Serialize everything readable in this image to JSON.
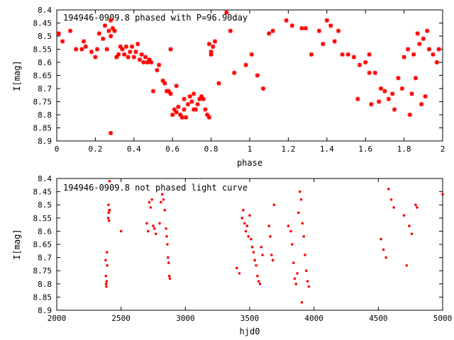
{
  "chart_data": [
    {
      "type": "scatter",
      "title": "194946-0909.8 phased with P=96.90day",
      "xlabel": "phase",
      "ylabel": "I[mag]",
      "xlim": [
        0,
        2
      ],
      "ylim": [
        8.4,
        8.9
      ],
      "y_inverted": true,
      "grid": false,
      "marker": "star",
      "color": "#ff0000",
      "x_ticks": [
        "0",
        "0.2",
        "0.4",
        "0.6",
        "0.8",
        "1",
        "1.2",
        "1.4",
        "1.6",
        "1.8",
        "2"
      ],
      "y_ticks": [
        "8.4",
        "8.45",
        "8.5",
        "8.55",
        "8.6",
        "8.65",
        "8.7",
        "8.75",
        "8.8",
        "8.85",
        "8.9"
      ],
      "series": [
        {
          "points": [
            [
              0.01,
              8.49
            ],
            [
              0.03,
              8.52
            ],
            [
              0.07,
              8.48
            ],
            [
              0.1,
              8.55
            ],
            [
              0.13,
              8.55
            ],
            [
              0.14,
              8.52
            ],
            [
              0.15,
              8.54
            ],
            [
              0.18,
              8.56
            ],
            [
              0.2,
              8.58
            ],
            [
              0.21,
              8.55
            ],
            [
              0.22,
              8.49
            ],
            [
              0.24,
              8.51
            ],
            [
              0.25,
              8.46
            ],
            [
              0.26,
              8.55
            ],
            [
              0.27,
              8.48
            ],
            [
              0.28,
              8.44
            ],
            [
              0.28,
              8.5
            ],
            [
              0.28,
              8.87
            ],
            [
              0.29,
              8.47
            ],
            [
              0.3,
              8.48
            ],
            [
              0.31,
              8.58
            ],
            [
              0.32,
              8.57
            ],
            [
              0.33,
              8.54
            ],
            [
              0.34,
              8.55
            ],
            [
              0.35,
              8.57
            ],
            [
              0.36,
              8.54
            ],
            [
              0.37,
              8.58
            ],
            [
              0.38,
              8.56
            ],
            [
              0.39,
              8.54
            ],
            [
              0.4,
              8.58
            ],
            [
              0.41,
              8.56
            ],
            [
              0.42,
              8.53
            ],
            [
              0.43,
              8.59
            ],
            [
              0.44,
              8.57
            ],
            [
              0.45,
              8.6
            ],
            [
              0.46,
              8.58
            ],
            [
              0.47,
              8.6
            ],
            [
              0.48,
              8.59
            ],
            [
              0.49,
              8.6
            ],
            [
              0.5,
              8.71
            ],
            [
              0.52,
              8.63
            ],
            [
              0.53,
              8.61
            ],
            [
              0.55,
              8.67
            ],
            [
              0.56,
              8.68
            ],
            [
              0.57,
              8.71
            ],
            [
              0.58,
              8.71
            ],
            [
              0.59,
              8.72
            ],
            [
              0.59,
              8.55
            ],
            [
              0.6,
              8.8
            ],
            [
              0.61,
              8.78
            ],
            [
              0.62,
              8.79
            ],
            [
              0.62,
              8.69
            ],
            [
              0.63,
              8.77
            ],
            [
              0.64,
              8.8
            ],
            [
              0.65,
              8.81
            ],
            [
              0.66,
              8.78
            ],
            [
              0.66,
              8.74
            ],
            [
              0.67,
              8.81
            ],
            [
              0.68,
              8.76
            ],
            [
              0.69,
              8.73
            ],
            [
              0.7,
              8.75
            ],
            [
              0.71,
              8.78
            ],
            [
              0.71,
              8.72
            ],
            [
              0.72,
              8.78
            ],
            [
              0.73,
              8.76
            ],
            [
              0.74,
              8.74
            ],
            [
              0.75,
              8.73
            ],
            [
              0.76,
              8.74
            ],
            [
              0.77,
              8.78
            ],
            [
              0.78,
              8.8
            ],
            [
              0.79,
              8.81
            ],
            [
              0.79,
              8.53
            ],
            [
              0.8,
              8.56
            ],
            [
              0.81,
              8.54
            ],
            [
              0.82,
              8.52
            ],
            [
              0.84,
              8.68
            ],
            [
              0.8,
              8.57
            ],
            [
              0.88,
              8.41
            ],
            [
              0.9,
              8.48
            ],
            [
              0.92,
              8.64
            ],
            [
              0.98,
              8.61
            ],
            [
              1.01,
              8.57
            ],
            [
              1.04,
              8.65
            ],
            [
              1.07,
              8.7
            ],
            [
              1.1,
              8.49
            ],
            [
              1.12,
              8.48
            ],
            [
              1.19,
              8.44
            ],
            [
              1.22,
              8.46
            ],
            [
              1.27,
              8.47
            ],
            [
              1.29,
              8.47
            ],
            [
              1.32,
              8.57
            ],
            [
              1.36,
              8.48
            ],
            [
              1.38,
              8.53
            ],
            [
              1.4,
              8.44
            ],
            [
              1.42,
              8.46
            ],
            [
              1.44,
              8.52
            ],
            [
              1.46,
              8.48
            ],
            [
              1.48,
              8.57
            ],
            [
              1.51,
              8.57
            ],
            [
              1.54,
              8.58
            ],
            [
              1.56,
              8.74
            ],
            [
              1.57,
              8.61
            ],
            [
              1.6,
              8.6
            ],
            [
              1.62,
              8.57
            ],
            [
              1.62,
              8.64
            ],
            [
              1.63,
              8.76
            ],
            [
              1.65,
              8.64
            ],
            [
              1.67,
              8.75
            ],
            [
              1.68,
              8.7
            ],
            [
              1.7,
              8.71
            ],
            [
              1.72,
              8.74
            ],
            [
              1.74,
              8.72
            ],
            [
              1.75,
              8.78
            ],
            [
              1.77,
              8.66
            ],
            [
              1.79,
              8.7
            ],
            [
              1.8,
              8.58
            ],
            [
              1.82,
              8.55
            ],
            [
              1.83,
              8.8
            ],
            [
              1.84,
              8.72
            ],
            [
              1.85,
              8.57
            ],
            [
              1.86,
              8.66
            ],
            [
              1.87,
              8.49
            ],
            [
              1.88,
              8.53
            ],
            [
              1.89,
              8.76
            ],
            [
              1.9,
              8.51
            ],
            [
              1.91,
              8.73
            ],
            [
              1.92,
              8.48
            ],
            [
              1.93,
              8.55
            ],
            [
              1.95,
              8.57
            ],
            [
              1.97,
              8.6
            ],
            [
              1.98,
              8.55
            ]
          ]
        }
      ]
    },
    {
      "type": "scatter",
      "title": "194946-0909.8 not phased light curve",
      "xlabel": "hjd0",
      "ylabel": "I[mag]",
      "xlim": [
        2000,
        5000
      ],
      "ylim": [
        8.4,
        8.9
      ],
      "y_inverted": true,
      "grid": false,
      "marker": "dot",
      "color": "#ff0000",
      "x_ticks": [
        "2000",
        "2500",
        "3000",
        "3500",
        "4000",
        "4500",
        "5000"
      ],
      "y_ticks": [
        "8.4",
        "8.45",
        "8.5",
        "8.55",
        "8.6",
        "8.65",
        "8.7",
        "8.75",
        "8.8",
        "8.85",
        "8.9"
      ],
      "series": [
        {
          "points": [
            [
              2380,
              8.71
            ],
            [
              2382,
              8.77
            ],
            [
              2384,
              8.8
            ],
            [
              2386,
              8.81
            ],
            [
              2388,
              8.79
            ],
            [
              2390,
              8.68
            ],
            [
              2392,
              8.73
            ],
            [
              2400,
              8.55
            ],
            [
              2402,
              8.5
            ],
            [
              2404,
              8.53
            ],
            [
              2406,
              8.56
            ],
            [
              2408,
              8.52
            ],
            [
              2410,
              8.41
            ],
            [
              2412,
              8.52
            ],
            [
              2500,
              8.6
            ],
            [
              2700,
              8.57
            ],
            [
              2710,
              8.6
            ],
            [
              2720,
              8.49
            ],
            [
              2730,
              8.51
            ],
            [
              2740,
              8.48
            ],
            [
              2750,
              8.58
            ],
            [
              2760,
              8.59
            ],
            [
              2770,
              8.61
            ],
            [
              2800,
              8.57
            ],
            [
              2810,
              8.49
            ],
            [
              2820,
              8.46
            ],
            [
              2830,
              8.48
            ],
            [
              2840,
              8.52
            ],
            [
              2850,
              8.59
            ],
            [
              2855,
              8.62
            ],
            [
              2860,
              8.65
            ],
            [
              2865,
              8.7
            ],
            [
              2870,
              8.72
            ],
            [
              2875,
              8.77
            ],
            [
              2880,
              8.78
            ],
            [
              3400,
              8.74
            ],
            [
              3420,
              8.76
            ],
            [
              3440,
              8.55
            ],
            [
              3450,
              8.52
            ],
            [
              3460,
              8.57
            ],
            [
              3470,
              8.6
            ],
            [
              3480,
              8.58
            ],
            [
              3490,
              8.62
            ],
            [
              3500,
              8.54
            ],
            [
              3510,
              8.63
            ],
            [
              3520,
              8.66
            ],
            [
              3530,
              8.68
            ],
            [
              3540,
              8.71
            ],
            [
              3550,
              8.73
            ],
            [
              3560,
              8.77
            ],
            [
              3570,
              8.79
            ],
            [
              3580,
              8.8
            ],
            [
              3590,
              8.66
            ],
            [
              3600,
              8.69
            ],
            [
              3650,
              8.58
            ],
            [
              3660,
              8.62
            ],
            [
              3670,
              8.69
            ],
            [
              3680,
              8.71
            ],
            [
              3690,
              8.5
            ],
            [
              3800,
              8.58
            ],
            [
              3820,
              8.6
            ],
            [
              3830,
              8.65
            ],
            [
              3840,
              8.72
            ],
            [
              3850,
              8.78
            ],
            [
              3860,
              8.8
            ],
            [
              3870,
              8.76
            ],
            [
              3880,
              8.53
            ],
            [
              3890,
              8.45
            ],
            [
              3900,
              8.48
            ],
            [
              3910,
              8.57
            ],
            [
              3920,
              8.62
            ],
            [
              3930,
              8.69
            ],
            [
              3940,
              8.75
            ],
            [
              3950,
              8.79
            ],
            [
              3960,
              8.81
            ],
            [
              3905,
              8.87
            ],
            [
              4520,
              8.63
            ],
            [
              4540,
              8.67
            ],
            [
              4560,
              8.7
            ],
            [
              4580,
              8.44
            ],
            [
              4600,
              8.48
            ],
            [
              4620,
              8.51
            ],
            [
              4700,
              8.54
            ],
            [
              4720,
              8.73
            ],
            [
              4740,
              8.58
            ],
            [
              4760,
              8.61
            ],
            [
              4790,
              8.5
            ],
            [
              4800,
              8.51
            ],
            [
              5000,
              8.46
            ]
          ]
        }
      ]
    }
  ]
}
